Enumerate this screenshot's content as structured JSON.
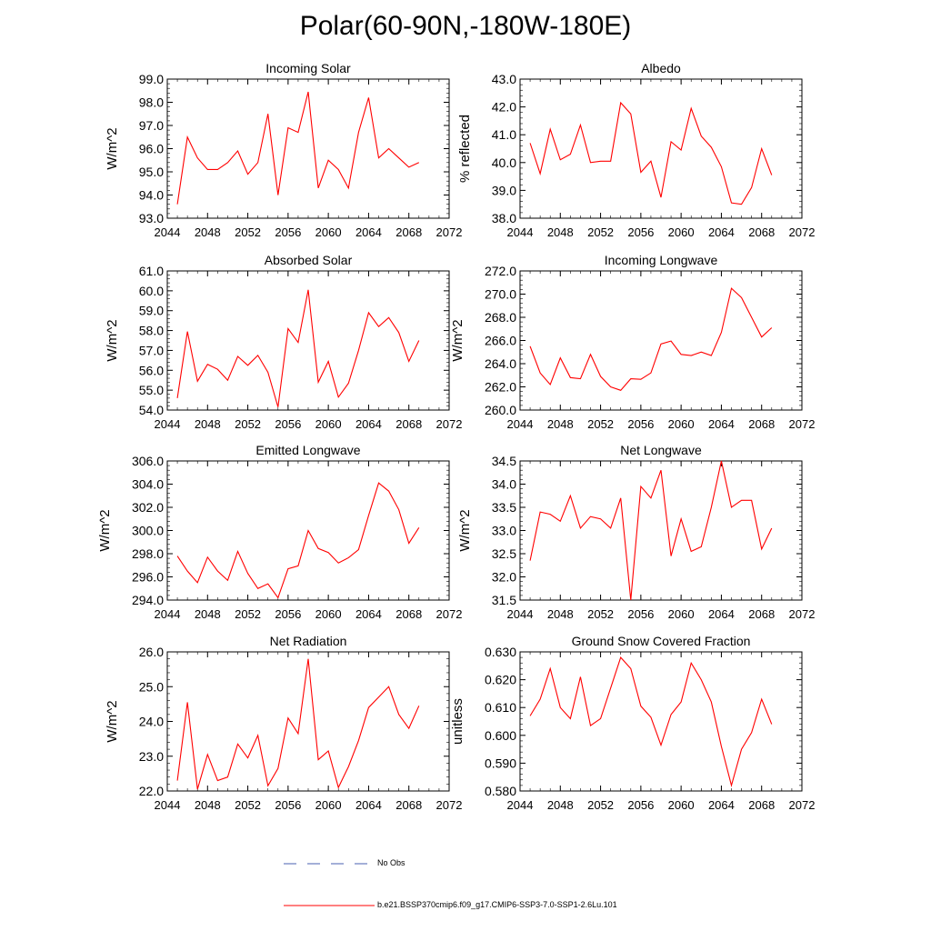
{
  "figure": {
    "title": "Polar(60-90N,-180W-180E)"
  },
  "legend": {
    "obs_label": "No Obs",
    "obs_color": "#4a5fb0",
    "model_label": "b.e21.BSSP370cmip6.f09_g17.CMIP6-SSP3-7.0-SSP1-2.6Lu.101",
    "model_color": "#ff0000"
  },
  "chart_data": [
    {
      "type": "line",
      "title": "Incoming Solar",
      "ylabel": "W/m^2",
      "xlim": [
        2044,
        2072
      ],
      "ylim": [
        93.0,
        99.0
      ],
      "xticks": [
        "2044",
        "2048",
        "2052",
        "2056",
        "2060",
        "2064",
        "2068",
        "2072"
      ],
      "yticks": [
        "93.0",
        "94.0",
        "95.0",
        "96.0",
        "97.0",
        "98.0",
        "99.0"
      ],
      "x": [
        2045,
        2046,
        2047,
        2048,
        2049,
        2050,
        2051,
        2052,
        2053,
        2054,
        2055,
        2056,
        2057,
        2058,
        2059,
        2060,
        2061,
        2062,
        2063,
        2064,
        2065,
        2066,
        2067,
        2068,
        2069
      ],
      "series": [
        {
          "values": [
            93.6,
            96.5,
            95.6,
            95.1,
            95.1,
            95.4,
            95.9,
            94.9,
            95.4,
            97.5,
            94.0,
            96.9,
            96.7,
            98.45,
            94.3,
            95.5,
            95.1,
            94.3,
            96.7,
            98.2,
            95.6,
            96.0,
            95.6,
            95.2,
            95.4
          ]
        }
      ]
    },
    {
      "type": "line",
      "title": "Albedo",
      "ylabel": "% reflected",
      "xlim": [
        2044,
        2072
      ],
      "ylim": [
        38.0,
        43.0
      ],
      "xticks": [
        "2044",
        "2048",
        "2052",
        "2056",
        "2060",
        "2064",
        "2068",
        "2072"
      ],
      "yticks": [
        "38.0",
        "39.0",
        "40.0",
        "41.0",
        "42.0",
        "43.0"
      ],
      "x": [
        2045,
        2046,
        2047,
        2048,
        2049,
        2050,
        2051,
        2052,
        2053,
        2054,
        2055,
        2056,
        2057,
        2058,
        2059,
        2060,
        2061,
        2062,
        2063,
        2064,
        2065,
        2066,
        2067,
        2068,
        2069
      ],
      "series": [
        {
          "values": [
            40.7,
            39.6,
            41.2,
            40.1,
            40.3,
            41.35,
            40.0,
            40.05,
            40.05,
            42.15,
            41.75,
            39.65,
            40.05,
            38.75,
            40.75,
            40.45,
            41.95,
            40.95,
            40.55,
            39.85,
            38.55,
            38.5,
            39.1,
            40.5,
            39.55
          ]
        }
      ]
    },
    {
      "type": "line",
      "title": "Absorbed Solar",
      "ylabel": "W/m^2",
      "xlim": [
        2044,
        2072
      ],
      "ylim": [
        54.0,
        61.0
      ],
      "xticks": [
        "2044",
        "2048",
        "2052",
        "2056",
        "2060",
        "2064",
        "2068",
        "2072"
      ],
      "yticks": [
        "54.0",
        "55.0",
        "56.0",
        "57.0",
        "58.0",
        "59.0",
        "60.0",
        "61.0"
      ],
      "x": [
        2045,
        2046,
        2047,
        2048,
        2049,
        2050,
        2051,
        2052,
        2053,
        2054,
        2055,
        2056,
        2057,
        2058,
        2059,
        2060,
        2061,
        2062,
        2063,
        2064,
        2065,
        2066,
        2067,
        2068,
        2069
      ],
      "series": [
        {
          "values": [
            54.6,
            57.95,
            55.45,
            56.3,
            56.05,
            55.5,
            56.7,
            56.25,
            56.75,
            55.9,
            54.15,
            58.1,
            57.4,
            60.05,
            55.4,
            56.45,
            54.65,
            55.35,
            57.0,
            58.9,
            58.2,
            58.65,
            57.9,
            56.45,
            57.5
          ]
        }
      ]
    },
    {
      "type": "line",
      "title": "Incoming Longwave",
      "ylabel": "W/m^2",
      "xlim": [
        2044,
        2072
      ],
      "ylim": [
        260.0,
        272.0
      ],
      "xticks": [
        "2044",
        "2048",
        "2052",
        "2056",
        "2060",
        "2064",
        "2068",
        "2072"
      ],
      "yticks": [
        "260.0",
        "262.0",
        "264.0",
        "266.0",
        "268.0",
        "270.0",
        "272.0"
      ],
      "x": [
        2045,
        2046,
        2047,
        2048,
        2049,
        2050,
        2051,
        2052,
        2053,
        2054,
        2055,
        2056,
        2057,
        2058,
        2059,
        2060,
        2061,
        2062,
        2063,
        2064,
        2065,
        2066,
        2067,
        2068,
        2069
      ],
      "series": [
        {
          "values": [
            265.5,
            263.2,
            262.2,
            264.5,
            262.8,
            262.7,
            264.8,
            262.9,
            262.0,
            261.7,
            262.7,
            262.65,
            263.2,
            265.7,
            265.95,
            264.8,
            264.7,
            265.0,
            264.7,
            266.7,
            270.5,
            269.7,
            268.0,
            266.3,
            267.1
          ]
        }
      ]
    },
    {
      "type": "line",
      "title": "Emitted Longwave",
      "ylabel": "W/m^2",
      "xlim": [
        2044,
        2072
      ],
      "ylim": [
        294.0,
        306.0
      ],
      "xticks": [
        "2044",
        "2048",
        "2052",
        "2056",
        "2060",
        "2064",
        "2068",
        "2072"
      ],
      "yticks": [
        "294.0",
        "296.0",
        "298.0",
        "300.0",
        "302.0",
        "304.0",
        "306.0"
      ],
      "x": [
        2045,
        2046,
        2047,
        2048,
        2049,
        2050,
        2051,
        2052,
        2053,
        2054,
        2055,
        2056,
        2057,
        2058,
        2059,
        2060,
        2061,
        2062,
        2063,
        2064,
        2065,
        2066,
        2067,
        2068,
        2069
      ],
      "series": [
        {
          "values": [
            297.8,
            296.5,
            295.5,
            297.7,
            296.5,
            295.7,
            298.2,
            296.3,
            295.0,
            295.4,
            294.2,
            296.7,
            296.95,
            300.0,
            298.45,
            298.1,
            297.2,
            297.65,
            298.35,
            301.3,
            304.1,
            303.4,
            301.8,
            298.9,
            300.25
          ]
        }
      ]
    },
    {
      "type": "line",
      "title": "Net Longwave",
      "ylabel": "W/m^2",
      "xlim": [
        2044,
        2072
      ],
      "ylim": [
        31.5,
        34.5
      ],
      "xticks": [
        "2044",
        "2048",
        "2052",
        "2056",
        "2060",
        "2064",
        "2068",
        "2072"
      ],
      "yticks": [
        "31.5",
        "32.0",
        "32.5",
        "33.0",
        "33.5",
        "34.0",
        "34.5"
      ],
      "x": [
        2045,
        2046,
        2047,
        2048,
        2049,
        2050,
        2051,
        2052,
        2053,
        2054,
        2055,
        2056,
        2057,
        2058,
        2059,
        2060,
        2061,
        2062,
        2063,
        2064,
        2065,
        2066,
        2067,
        2068,
        2069
      ],
      "series": [
        {
          "values": [
            32.35,
            33.4,
            33.35,
            33.2,
            33.75,
            33.05,
            33.3,
            33.25,
            33.05,
            33.7,
            31.5,
            33.95,
            33.7,
            34.3,
            32.45,
            33.25,
            32.55,
            32.65,
            33.5,
            34.5,
            33.5,
            33.65,
            33.65,
            32.6,
            33.05
          ]
        }
      ]
    },
    {
      "type": "line",
      "title": "Net Radiation",
      "ylabel": "W/m^2",
      "xlim": [
        2044,
        2072
      ],
      "ylim": [
        22.0,
        26.0
      ],
      "xticks": [
        "2044",
        "2048",
        "2052",
        "2056",
        "2060",
        "2064",
        "2068",
        "2072"
      ],
      "yticks": [
        "22.0",
        "23.0",
        "24.0",
        "25.0",
        "26.0"
      ],
      "x": [
        2045,
        2046,
        2047,
        2048,
        2049,
        2050,
        2051,
        2052,
        2053,
        2054,
        2055,
        2056,
        2057,
        2058,
        2059,
        2060,
        2061,
        2062,
        2063,
        2064,
        2065,
        2066,
        2067,
        2068,
        2069
      ],
      "series": [
        {
          "values": [
            22.3,
            24.55,
            22.05,
            23.05,
            22.3,
            22.4,
            23.35,
            22.95,
            23.6,
            22.15,
            22.65,
            24.1,
            23.65,
            25.8,
            22.9,
            23.15,
            22.1,
            22.7,
            23.45,
            24.4,
            24.7,
            25.0,
            24.2,
            23.8,
            24.45
          ]
        }
      ]
    },
    {
      "type": "line",
      "title": "Ground Snow Covered Fraction",
      "ylabel": "unitless",
      "xlim": [
        2044,
        2072
      ],
      "ylim": [
        0.58,
        0.63
      ],
      "xticks": [
        "2044",
        "2048",
        "2052",
        "2056",
        "2060",
        "2064",
        "2068",
        "2072"
      ],
      "yticks": [
        "0.580",
        "0.590",
        "0.600",
        "0.610",
        "0.620",
        "0.630"
      ],
      "x": [
        2045,
        2046,
        2047,
        2048,
        2049,
        2050,
        2051,
        2052,
        2053,
        2054,
        2055,
        2056,
        2057,
        2058,
        2059,
        2060,
        2061,
        2062,
        2063,
        2064,
        2065,
        2066,
        2067,
        2068,
        2069
      ],
      "series": [
        {
          "values": [
            0.607,
            0.613,
            0.624,
            0.61,
            0.606,
            0.621,
            0.6035,
            0.606,
            0.617,
            0.628,
            0.624,
            0.6105,
            0.6065,
            0.5965,
            0.6075,
            0.612,
            0.626,
            0.62,
            0.612,
            0.596,
            0.582,
            0.595,
            0.601,
            0.613,
            0.604
          ]
        }
      ]
    }
  ]
}
